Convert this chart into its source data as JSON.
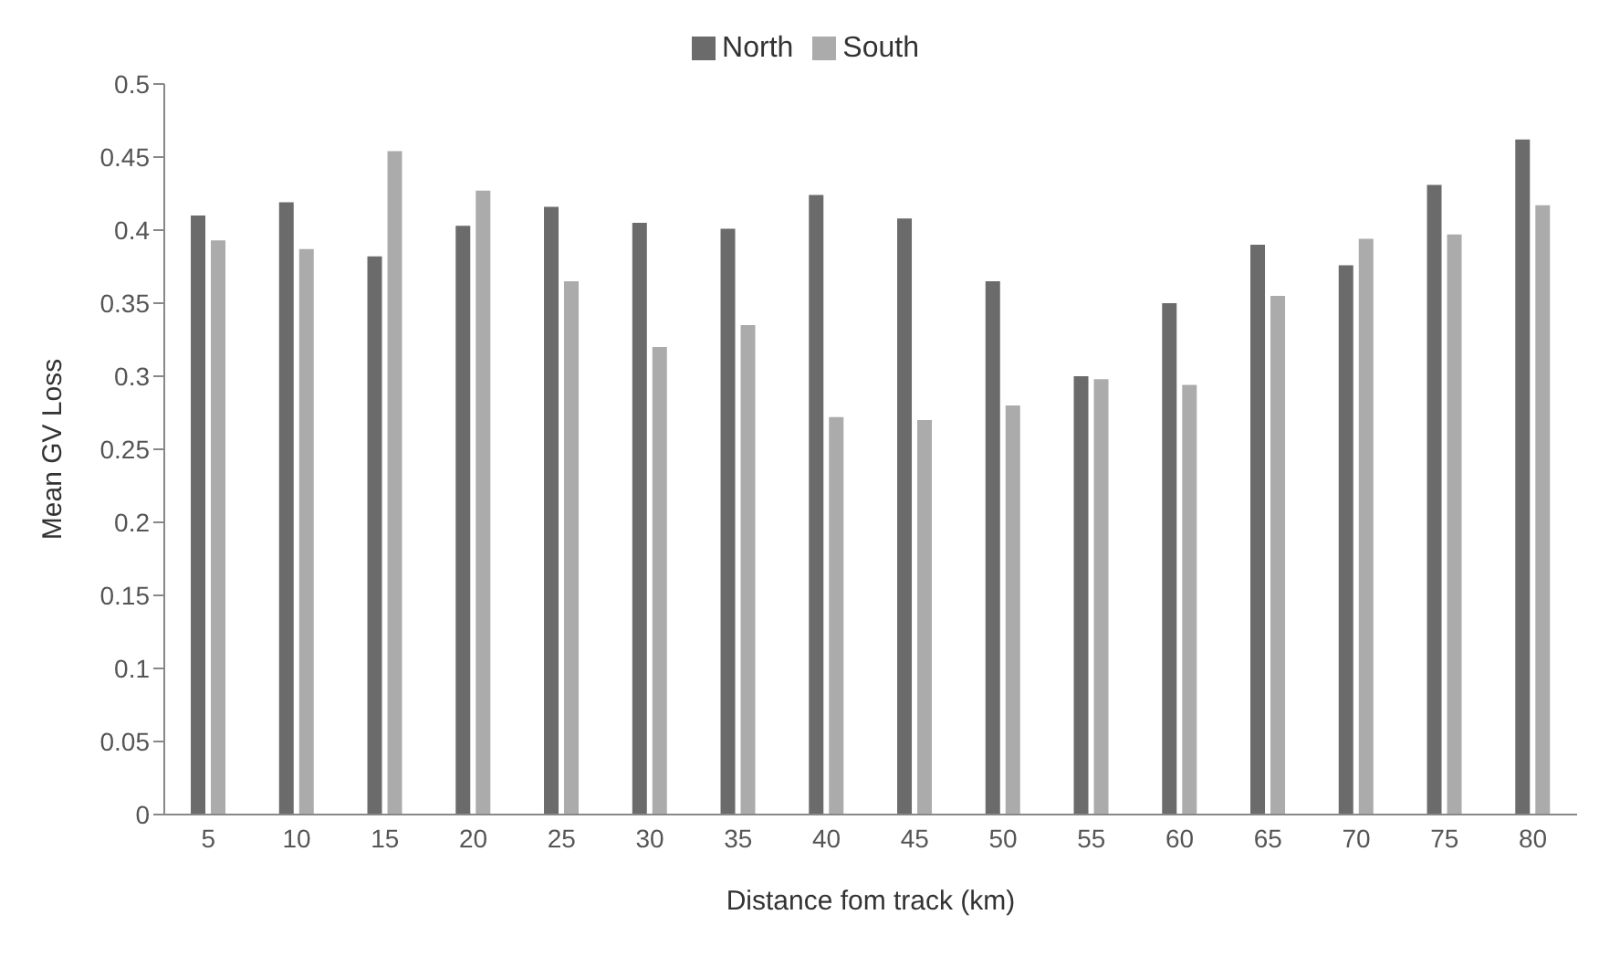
{
  "chart_data": {
    "type": "bar",
    "xlabel": "Distance fom track (km)",
    "ylabel": "Mean GV Loss",
    "categories": [
      "5",
      "10",
      "15",
      "20",
      "25",
      "30",
      "35",
      "40",
      "45",
      "50",
      "55",
      "60",
      "65",
      "70",
      "75",
      "80"
    ],
    "series": [
      {
        "name": "North",
        "color": "#6b6b6b",
        "values": [
          0.41,
          0.419,
          0.382,
          0.403,
          0.416,
          0.405,
          0.401,
          0.424,
          0.408,
          0.365,
          0.3,
          0.35,
          0.39,
          0.376,
          0.431,
          0.462
        ]
      },
      {
        "name": "South",
        "color": "#ababab",
        "values": [
          0.393,
          0.387,
          0.454,
          0.427,
          0.365,
          0.32,
          0.335,
          0.272,
          0.27,
          0.28,
          0.298,
          0.294,
          0.355,
          0.394,
          0.397,
          0.417
        ]
      }
    ],
    "ylim": [
      0,
      0.5
    ],
    "yticks": [
      0,
      0.05,
      0.1,
      0.15,
      0.2,
      0.25,
      0.3,
      0.35,
      0.4,
      0.45,
      0.5
    ],
    "grid": false,
    "legend": "top"
  }
}
